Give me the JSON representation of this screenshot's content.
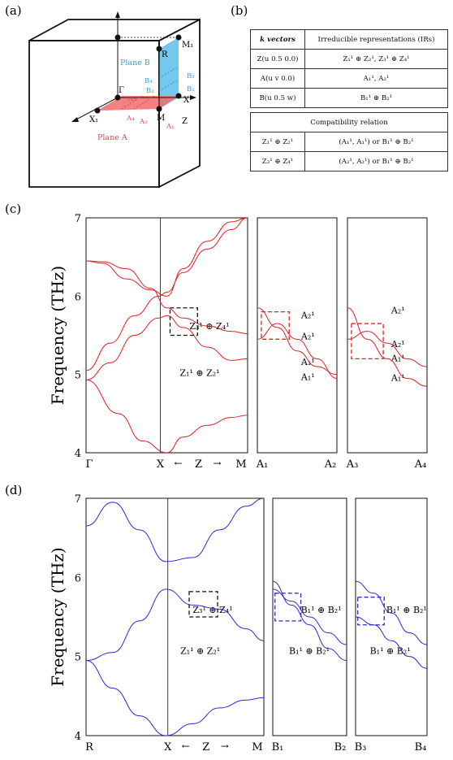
{
  "panel_labels": {
    "a": "(a)",
    "b": "(b)",
    "c": "(c)",
    "d": "(d)"
  },
  "bz": {
    "points": {
      "gamma": "Γ",
      "x": "X",
      "x1": "X₁",
      "m": "M",
      "m1": "M₁",
      "r": "R",
      "z": "Z"
    },
    "plane_a": "Plane A",
    "plane_b": "Plane B",
    "a_points": [
      "A₁",
      "A₂",
      "A₃",
      "A₄"
    ],
    "b_points": [
      "B₁",
      "B₂",
      "B₃",
      "B₄"
    ],
    "colors": {
      "plane_a": "#f26b6b",
      "plane_b": "#5bbfe8",
      "label_a": "#e34a4a",
      "label_b": "#2aa4d8"
    }
  },
  "table": {
    "head": [
      "k vectors",
      "Irreducible representations (IRs)"
    ],
    "rows": [
      {
        "k": "Z(u 0.5 0.0)",
        "ir": "Z₁¹ ⊕ Z₂¹, Z₃¹ ⊕ Z₄¹"
      },
      {
        "k": "A(u v 0.0)",
        "ir": "A₁¹, A₂¹"
      },
      {
        "k": "B(u 0.5 w)",
        "ir": "B₁¹ ⊕ B₂¹"
      }
    ],
    "compat_head": "Compatibility relation",
    "compat": [
      {
        "k": "Z₁¹ ⊕ Z₂¹",
        "rel": "(A₁¹, A₁¹) or B₁¹ ⊕ B₂¹"
      },
      {
        "k": "Z₃¹ ⊕ Z₄¹",
        "rel": "(A₂¹, A₂¹) or B₁¹ ⊕ B₂¹"
      }
    ]
  },
  "chart_data": [
    {
      "type": "line",
      "panel": "(c)",
      "ylabel": "Frequency (THz)",
      "ylim": [
        4,
        7
      ],
      "yticks": [
        "4",
        "5",
        "6",
        "7"
      ],
      "color": "#e02020",
      "subplots": [
        {
          "xticks": [
            "Γ",
            "X",
            "Z",
            "M"
          ],
          "arrows": [
            "←",
            "→"
          ],
          "annotations": [
            "Z₃¹ ⊕ Z₄¹",
            "Z₁¹ ⊕ Z₂¹"
          ]
        },
        {
          "xticks": [
            "A₁",
            "A₂"
          ],
          "annotations": [
            "A₂¹",
            "A₂¹",
            "A₁¹",
            "A₁¹"
          ]
        },
        {
          "xticks": [
            "A₃",
            "A₄"
          ],
          "annotations": [
            "A₂¹",
            "A₂¹",
            "A₁¹",
            "A₁¹"
          ]
        }
      ],
      "bands": [
        {
          "subplot": 0,
          "x": [
            0,
            0.1,
            0.25,
            0.4,
            0.5,
            0.6,
            0.75,
            0.9,
            1.0
          ],
          "y": [
            6.45,
            6.44,
            6.35,
            6.1,
            5.85,
            5.72,
            5.62,
            5.55,
            5.52
          ]
        },
        {
          "subplot": 0,
          "x": [
            0,
            0.1,
            0.25,
            0.4,
            0.5,
            0.6,
            0.75,
            0.9,
            1.0
          ],
          "y": [
            6.45,
            6.42,
            6.22,
            6.08,
            6.0,
            6.35,
            6.7,
            6.95,
            7.0
          ]
        },
        {
          "subplot": 0,
          "x": [
            0,
            0.15,
            0.3,
            0.45,
            0.5,
            0.6,
            0.75,
            0.9,
            1.0
          ],
          "y": [
            5.05,
            5.4,
            5.75,
            6.0,
            6.05,
            6.3,
            6.6,
            6.85,
            7.0
          ]
        },
        {
          "subplot": 0,
          "x": [
            0,
            0.15,
            0.3,
            0.45,
            0.5,
            0.6,
            0.75,
            0.9,
            1.0
          ],
          "y": [
            4.93,
            5.15,
            5.5,
            5.72,
            5.75,
            5.6,
            5.35,
            5.18,
            5.2
          ]
        },
        {
          "subplot": 0,
          "x": [
            0,
            0.2,
            0.35,
            0.5,
            0.6,
            0.75,
            0.9,
            1.0
          ],
          "y": [
            4.93,
            4.5,
            4.15,
            4.0,
            4.2,
            4.35,
            4.45,
            4.48
          ]
        },
        {
          "subplot": 1,
          "x": [
            0,
            0.25,
            0.5,
            0.75,
            1.0
          ],
          "y": [
            5.85,
            5.6,
            5.3,
            5.1,
            5.0
          ]
        },
        {
          "subplot": 1,
          "x": [
            0,
            0.25,
            0.5,
            0.75,
            1.0
          ],
          "y": [
            5.45,
            5.65,
            5.45,
            5.2,
            4.95
          ]
        },
        {
          "subplot": 2,
          "x": [
            0,
            0.25,
            0.5,
            0.75,
            1.0
          ],
          "y": [
            5.45,
            5.55,
            5.4,
            5.2,
            5.1
          ]
        },
        {
          "subplot": 2,
          "x": [
            0,
            0.25,
            0.5,
            0.75,
            1.0
          ],
          "y": [
            5.85,
            5.45,
            5.2,
            4.95,
            4.85
          ]
        }
      ]
    },
    {
      "type": "line",
      "panel": "(d)",
      "ylabel": "Frequency (THz)",
      "ylim": [
        4,
        7
      ],
      "yticks": [
        "4",
        "5",
        "6",
        "7"
      ],
      "color": "#2a2ad6",
      "subplots": [
        {
          "xticks": [
            "R",
            "X",
            "Z",
            "M"
          ],
          "arrows": [
            "←",
            "→"
          ],
          "annotations": [
            "Z₃¹ ⊕ Z₄¹",
            "Z₁¹ ⊕ Z₂¹"
          ]
        },
        {
          "xticks": [
            "B₁",
            "B₂"
          ],
          "annotations": [
            "B₁¹ ⊕ B₂¹",
            "B₁¹ ⊕ B₂¹"
          ]
        },
        {
          "xticks": [
            "B₃",
            "B₄"
          ],
          "annotations": [
            "B₁¹ ⊕ B₂¹",
            "B₁¹ ⊕ B₂¹"
          ]
        }
      ],
      "bands": [
        {
          "subplot": 0,
          "x": [
            0,
            0.15,
            0.3,
            0.45,
            0.6,
            0.75,
            0.9,
            1.0
          ],
          "y": [
            6.65,
            6.95,
            6.6,
            6.2,
            6.25,
            6.6,
            6.9,
            7.0
          ]
        },
        {
          "subplot": 0,
          "x": [
            0,
            0.15,
            0.3,
            0.45,
            0.6,
            0.75,
            0.9,
            1.0
          ],
          "y": [
            4.95,
            5.05,
            5.45,
            5.85,
            5.65,
            5.6,
            5.35,
            5.2
          ]
        },
        {
          "subplot": 0,
          "x": [
            0,
            0.15,
            0.3,
            0.45,
            0.6,
            0.75,
            0.9,
            1.0
          ],
          "y": [
            4.95,
            4.6,
            4.25,
            4.0,
            4.15,
            4.35,
            4.45,
            4.48
          ]
        },
        {
          "subplot": 1,
          "x": [
            0,
            0.25,
            0.5,
            0.75,
            1.0
          ],
          "y": [
            5.85,
            5.7,
            5.5,
            5.3,
            5.15
          ]
        },
        {
          "subplot": 1,
          "x": [
            0,
            0.25,
            0.5,
            0.75,
            1.0
          ],
          "y": [
            5.95,
            5.65,
            5.4,
            5.1,
            4.95
          ]
        },
        {
          "subplot": 2,
          "x": [
            0,
            0.25,
            0.5,
            0.75,
            1.0
          ],
          "y": [
            5.95,
            5.8,
            5.55,
            5.3,
            5.15
          ]
        },
        {
          "subplot": 2,
          "x": [
            0,
            0.25,
            0.5,
            0.75,
            1.0
          ],
          "y": [
            5.5,
            5.4,
            5.2,
            5.0,
            4.85
          ]
        }
      ]
    }
  ]
}
